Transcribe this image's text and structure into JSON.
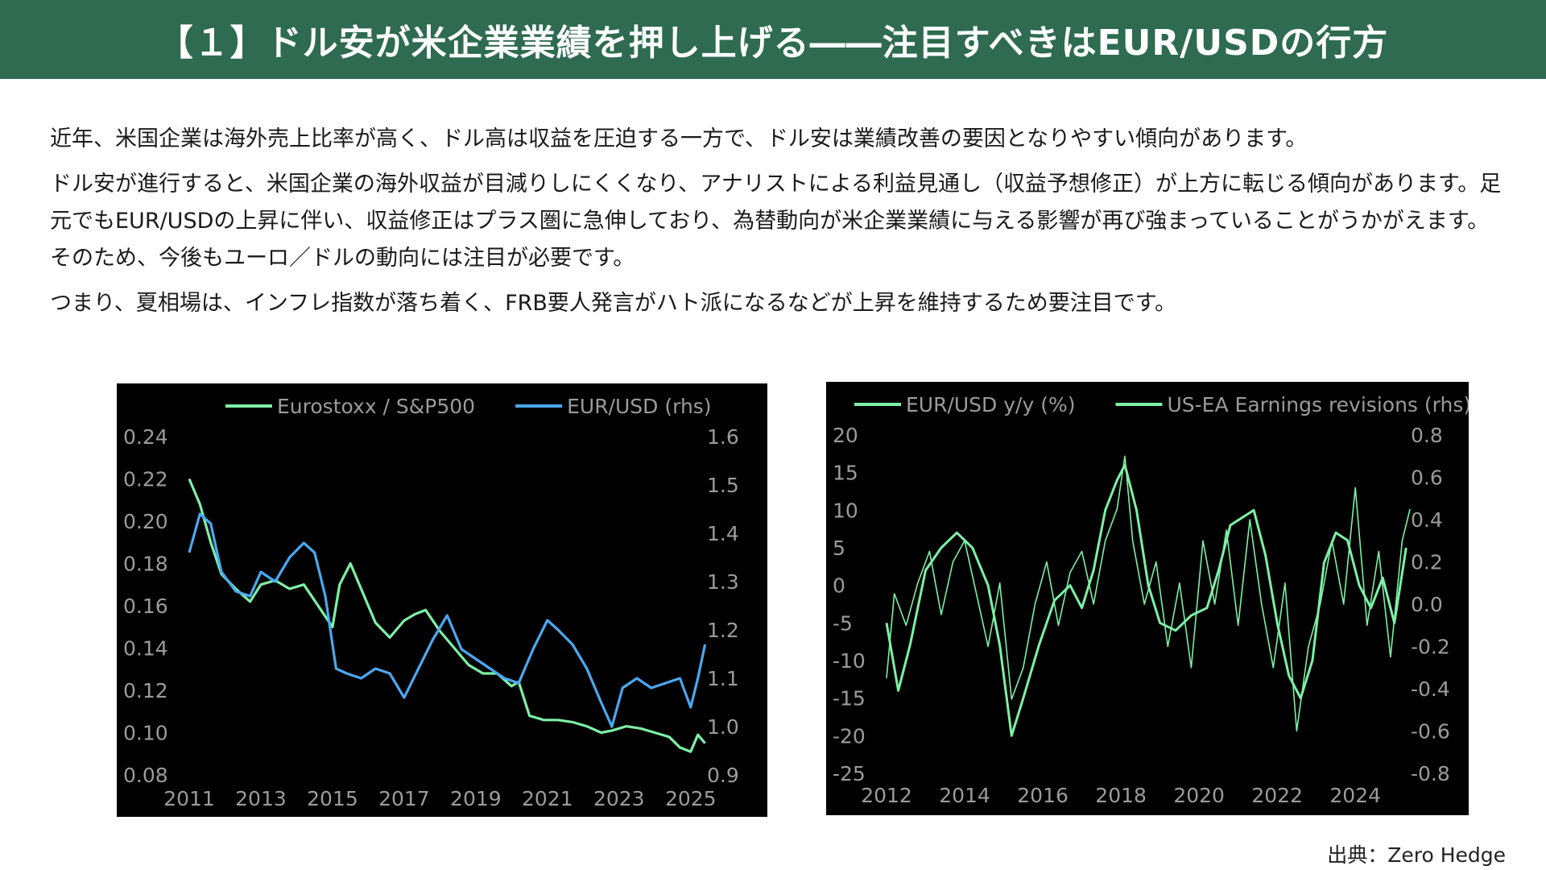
{
  "header": {
    "title": "【１】ドル安が米企業業績を押し上げる――注目すべきはEUR/USDの行方"
  },
  "body": {
    "paragraphs": [
      "近年、米国企業は海外売上比率が高く、ドル高は収益を圧迫する一方で、ドル安は業績改善の要因となりやすい傾向があります。",
      "ドル安が進行すると、米国企業の海外収益が目減りしにくくなり、アナリストによる利益見通し（収益予想修正）が上方に転じる傾向があります。足元でもEUR/USDの上昇に伴い、収益修正はプラス圏に急伸しており、為替動向が米企業業績に与える影響が再び強まっていることがうかがえます。そのため、今後もユーロ／ドルの動向には注目が必要です。",
      "つまり、夏相場は、インフレ指数が落ち着く、FRB要人発言がハト派になるなどが上昇を維持するため要注目です。"
    ]
  },
  "source": "出典：Zero Hedge",
  "colors": {
    "banner": "#2e6b50",
    "green": "#7df0a6",
    "blue": "#4aa8f0",
    "panel_bg": "#000000",
    "tick": "#9b9b9b"
  },
  "chart_data": [
    {
      "type": "line",
      "title": "",
      "legend_position": "top",
      "grid": false,
      "x_ticks": [
        "2011",
        "2013",
        "2015",
        "2017",
        "2019",
        "2021",
        "2023",
        "2025"
      ],
      "xlim": [
        2011,
        2025.5
      ],
      "y_left_ticks": [
        "0.24",
        "0.22",
        "0.20",
        "0.18",
        "0.16",
        "0.14",
        "0.12",
        "0.10",
        "0.08"
      ],
      "ylim_left": [
        0.08,
        0.24
      ],
      "y_right_ticks": [
        "1.6",
        "1.5",
        "1.4",
        "1.3",
        "1.2",
        "1.1",
        "1.0",
        "0.9"
      ],
      "ylim_right": [
        0.9,
        1.6
      ],
      "series": [
        {
          "name": "Eurostoxx / S&P500",
          "axis": "left",
          "color": "#7df0a6",
          "x": [
            2011.0,
            2011.3,
            2011.6,
            2011.9,
            2012.3,
            2012.7,
            2013.0,
            2013.4,
            2013.8,
            2014.2,
            2014.6,
            2015.0,
            2015.2,
            2015.5,
            2015.8,
            2016.2,
            2016.6,
            2017.0,
            2017.3,
            2017.6,
            2018.0,
            2018.4,
            2018.8,
            2019.2,
            2019.6,
            2020.0,
            2020.2,
            2020.5,
            2020.9,
            2021.3,
            2021.7,
            2022.1,
            2022.5,
            2022.8,
            2023.2,
            2023.6,
            2024.0,
            2024.4,
            2024.7,
            2025.0,
            2025.2,
            2025.4
          ],
          "values": [
            0.22,
            0.208,
            0.19,
            0.175,
            0.168,
            0.162,
            0.17,
            0.172,
            0.168,
            0.17,
            0.16,
            0.15,
            0.17,
            0.18,
            0.168,
            0.152,
            0.145,
            0.153,
            0.156,
            0.158,
            0.148,
            0.14,
            0.132,
            0.128,
            0.128,
            0.122,
            0.124,
            0.108,
            0.106,
            0.106,
            0.105,
            0.103,
            0.1,
            0.101,
            0.103,
            0.102,
            0.1,
            0.098,
            0.093,
            0.091,
            0.099,
            0.095
          ]
        },
        {
          "name": "EUR/USD (rhs)",
          "axis": "right",
          "color": "#4aa8f0",
          "x": [
            2011.0,
            2011.3,
            2011.6,
            2011.9,
            2012.3,
            2012.7,
            2013.0,
            2013.4,
            2013.8,
            2014.2,
            2014.5,
            2014.8,
            2015.1,
            2015.4,
            2015.8,
            2016.2,
            2016.6,
            2017.0,
            2017.4,
            2017.8,
            2018.2,
            2018.6,
            2019.0,
            2019.4,
            2019.8,
            2020.2,
            2020.6,
            2021.0,
            2021.3,
            2021.7,
            2022.1,
            2022.5,
            2022.8,
            2023.1,
            2023.5,
            2023.9,
            2024.3,
            2024.7,
            2025.0,
            2025.2,
            2025.4
          ],
          "values": [
            1.36,
            1.44,
            1.42,
            1.32,
            1.28,
            1.27,
            1.32,
            1.3,
            1.35,
            1.38,
            1.36,
            1.27,
            1.12,
            1.11,
            1.1,
            1.12,
            1.11,
            1.06,
            1.12,
            1.18,
            1.23,
            1.16,
            1.14,
            1.12,
            1.1,
            1.09,
            1.16,
            1.22,
            1.2,
            1.17,
            1.12,
            1.05,
            1.0,
            1.08,
            1.1,
            1.08,
            1.09,
            1.1,
            1.04,
            1.1,
            1.17
          ]
        }
      ]
    },
    {
      "type": "line",
      "title": "",
      "legend_position": "top",
      "grid": false,
      "x_ticks": [
        "2012",
        "2014",
        "2016",
        "2018",
        "2020",
        "2022",
        "2024"
      ],
      "xlim": [
        2012,
        2025.5
      ],
      "y_left_ticks": [
        "20",
        "15",
        "10",
        "5",
        "0",
        "-5",
        "-10",
        "-15",
        "-20",
        "-25"
      ],
      "ylim_left": [
        -25,
        20
      ],
      "y_right_ticks": [
        "0.8",
        "0.6",
        "0.4",
        "0.2",
        "0.0",
        "-0.2",
        "-0.4",
        "-0.6",
        "-0.8"
      ],
      "ylim_right": [
        -0.8,
        0.8
      ],
      "series": [
        {
          "name": "EUR/USD y/y (%)",
          "axis": "left",
          "color": "#7df0a6",
          "width": 3,
          "x": [
            2012.0,
            2012.3,
            2012.6,
            2013.0,
            2013.4,
            2013.8,
            2014.2,
            2014.6,
            2014.9,
            2015.2,
            2015.5,
            2015.9,
            2016.3,
            2016.7,
            2017.0,
            2017.3,
            2017.6,
            2017.9,
            2018.1,
            2018.4,
            2018.7,
            2019.0,
            2019.4,
            2019.8,
            2020.2,
            2020.5,
            2020.8,
            2021.1,
            2021.4,
            2021.7,
            2022.0,
            2022.3,
            2022.6,
            2022.9,
            2023.2,
            2023.5,
            2023.8,
            2024.1,
            2024.4,
            2024.7,
            2025.0,
            2025.3
          ],
          "values": [
            -5,
            -14,
            -8,
            2,
            5,
            7,
            5,
            0,
            -8,
            -20,
            -15,
            -8,
            -2,
            0,
            -3,
            2,
            10,
            14,
            16,
            10,
            0,
            -5,
            -6,
            -4,
            -3,
            2,
            8,
            9,
            10,
            4,
            -5,
            -12,
            -15,
            -10,
            3,
            7,
            6,
            0,
            -3,
            1,
            -5,
            5
          ]
        },
        {
          "name": "US-EA Earnings revisions (rhs)",
          "axis": "right",
          "color": "#7df0a6",
          "width": 1.6,
          "x": [
            2012.0,
            2012.2,
            2012.5,
            2012.8,
            2013.1,
            2013.4,
            2013.7,
            2014.0,
            2014.3,
            2014.6,
            2014.9,
            2015.2,
            2015.5,
            2015.8,
            2016.1,
            2016.4,
            2016.7,
            2017.0,
            2017.3,
            2017.6,
            2017.9,
            2018.1,
            2018.3,
            2018.6,
            2018.9,
            2019.2,
            2019.5,
            2019.8,
            2020.1,
            2020.4,
            2020.7,
            2021.0,
            2021.3,
            2021.6,
            2021.9,
            2022.2,
            2022.5,
            2022.8,
            2023.1,
            2023.4,
            2023.7,
            2024.0,
            2024.3,
            2024.6,
            2024.9,
            2025.2,
            2025.4
          ],
          "values": [
            -0.35,
            0.05,
            -0.1,
            0.1,
            0.25,
            -0.05,
            0.2,
            0.3,
            0.05,
            -0.2,
            0.1,
            -0.45,
            -0.3,
            0.0,
            0.2,
            -0.1,
            0.15,
            0.25,
            0.0,
            0.3,
            0.45,
            0.7,
            0.3,
            0.0,
            0.2,
            -0.2,
            0.1,
            -0.3,
            0.3,
            0.0,
            0.35,
            -0.1,
            0.4,
            0.0,
            -0.3,
            0.1,
            -0.6,
            -0.2,
            0.0,
            0.3,
            0.0,
            0.55,
            -0.1,
            0.25,
            -0.25,
            0.3,
            0.45
          ]
        }
      ]
    }
  ]
}
